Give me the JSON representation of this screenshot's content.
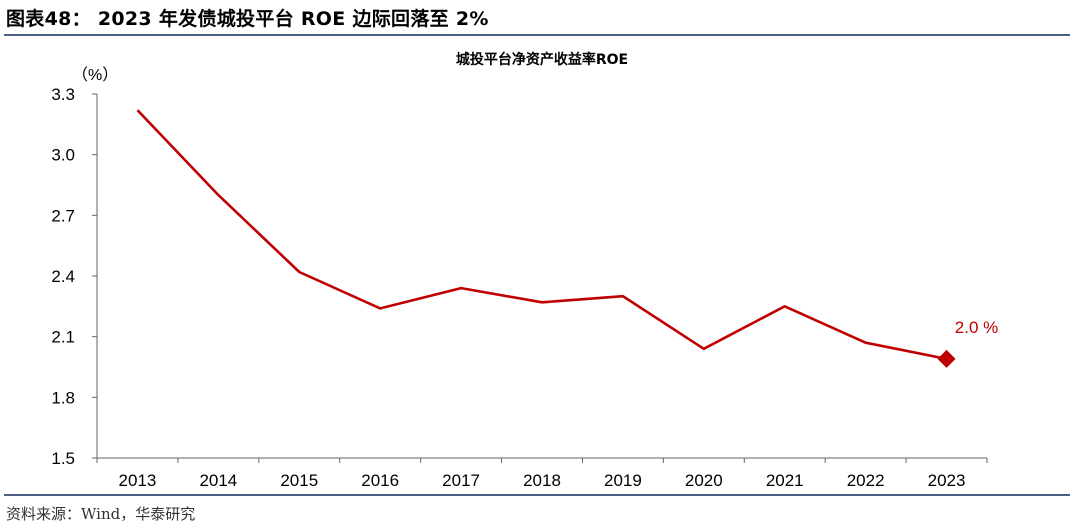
{
  "header": {
    "figure_title": "图表48： 2023 年发债城投平台 ROE 边际回落至 2%",
    "source": "资料来源：Wind，华泰研究"
  },
  "colors": {
    "line": "#c00000",
    "rule": "#4a5f86"
  },
  "chart_data": {
    "type": "line",
    "title": "城投平台净资产收益率ROE",
    "ylabel": "（%）",
    "xlabel": "",
    "categories": [
      "2013",
      "2014",
      "2015",
      "2016",
      "2017",
      "2018",
      "2019",
      "2020",
      "2021",
      "2022",
      "2023"
    ],
    "values": [
      3.22,
      2.8,
      2.42,
      2.24,
      2.34,
      2.27,
      2.3,
      2.04,
      2.25,
      2.07,
      1.99
    ],
    "ylim": [
      1.5,
      3.3
    ],
    "yticks": [
      "3.3",
      "3.0",
      "2.7",
      "2.4",
      "2.1",
      "1.8",
      "1.5"
    ],
    "grid": false,
    "last_point_marker": "diamond",
    "last_point_label": "2.0 %"
  }
}
